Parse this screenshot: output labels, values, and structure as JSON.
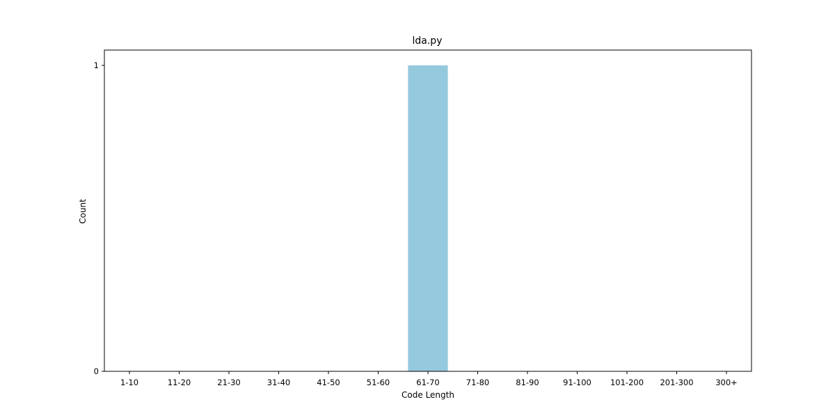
{
  "chart_data": {
    "type": "bar",
    "title": "lda.py",
    "xlabel": "Code Length",
    "ylabel": "Count",
    "categories": [
      "1-10",
      "11-20",
      "21-30",
      "31-40",
      "41-50",
      "51-60",
      "61-70",
      "71-80",
      "81-90",
      "91-100",
      "101-200",
      "201-300",
      "300+"
    ],
    "values": [
      0,
      0,
      0,
      0,
      0,
      0,
      1,
      0,
      0,
      0,
      0,
      0,
      0
    ],
    "ylim": [
      0,
      1
    ],
    "yticks": [
      0,
      1
    ],
    "grid": false,
    "legend": "none",
    "bar_color": "#95c9dd"
  }
}
